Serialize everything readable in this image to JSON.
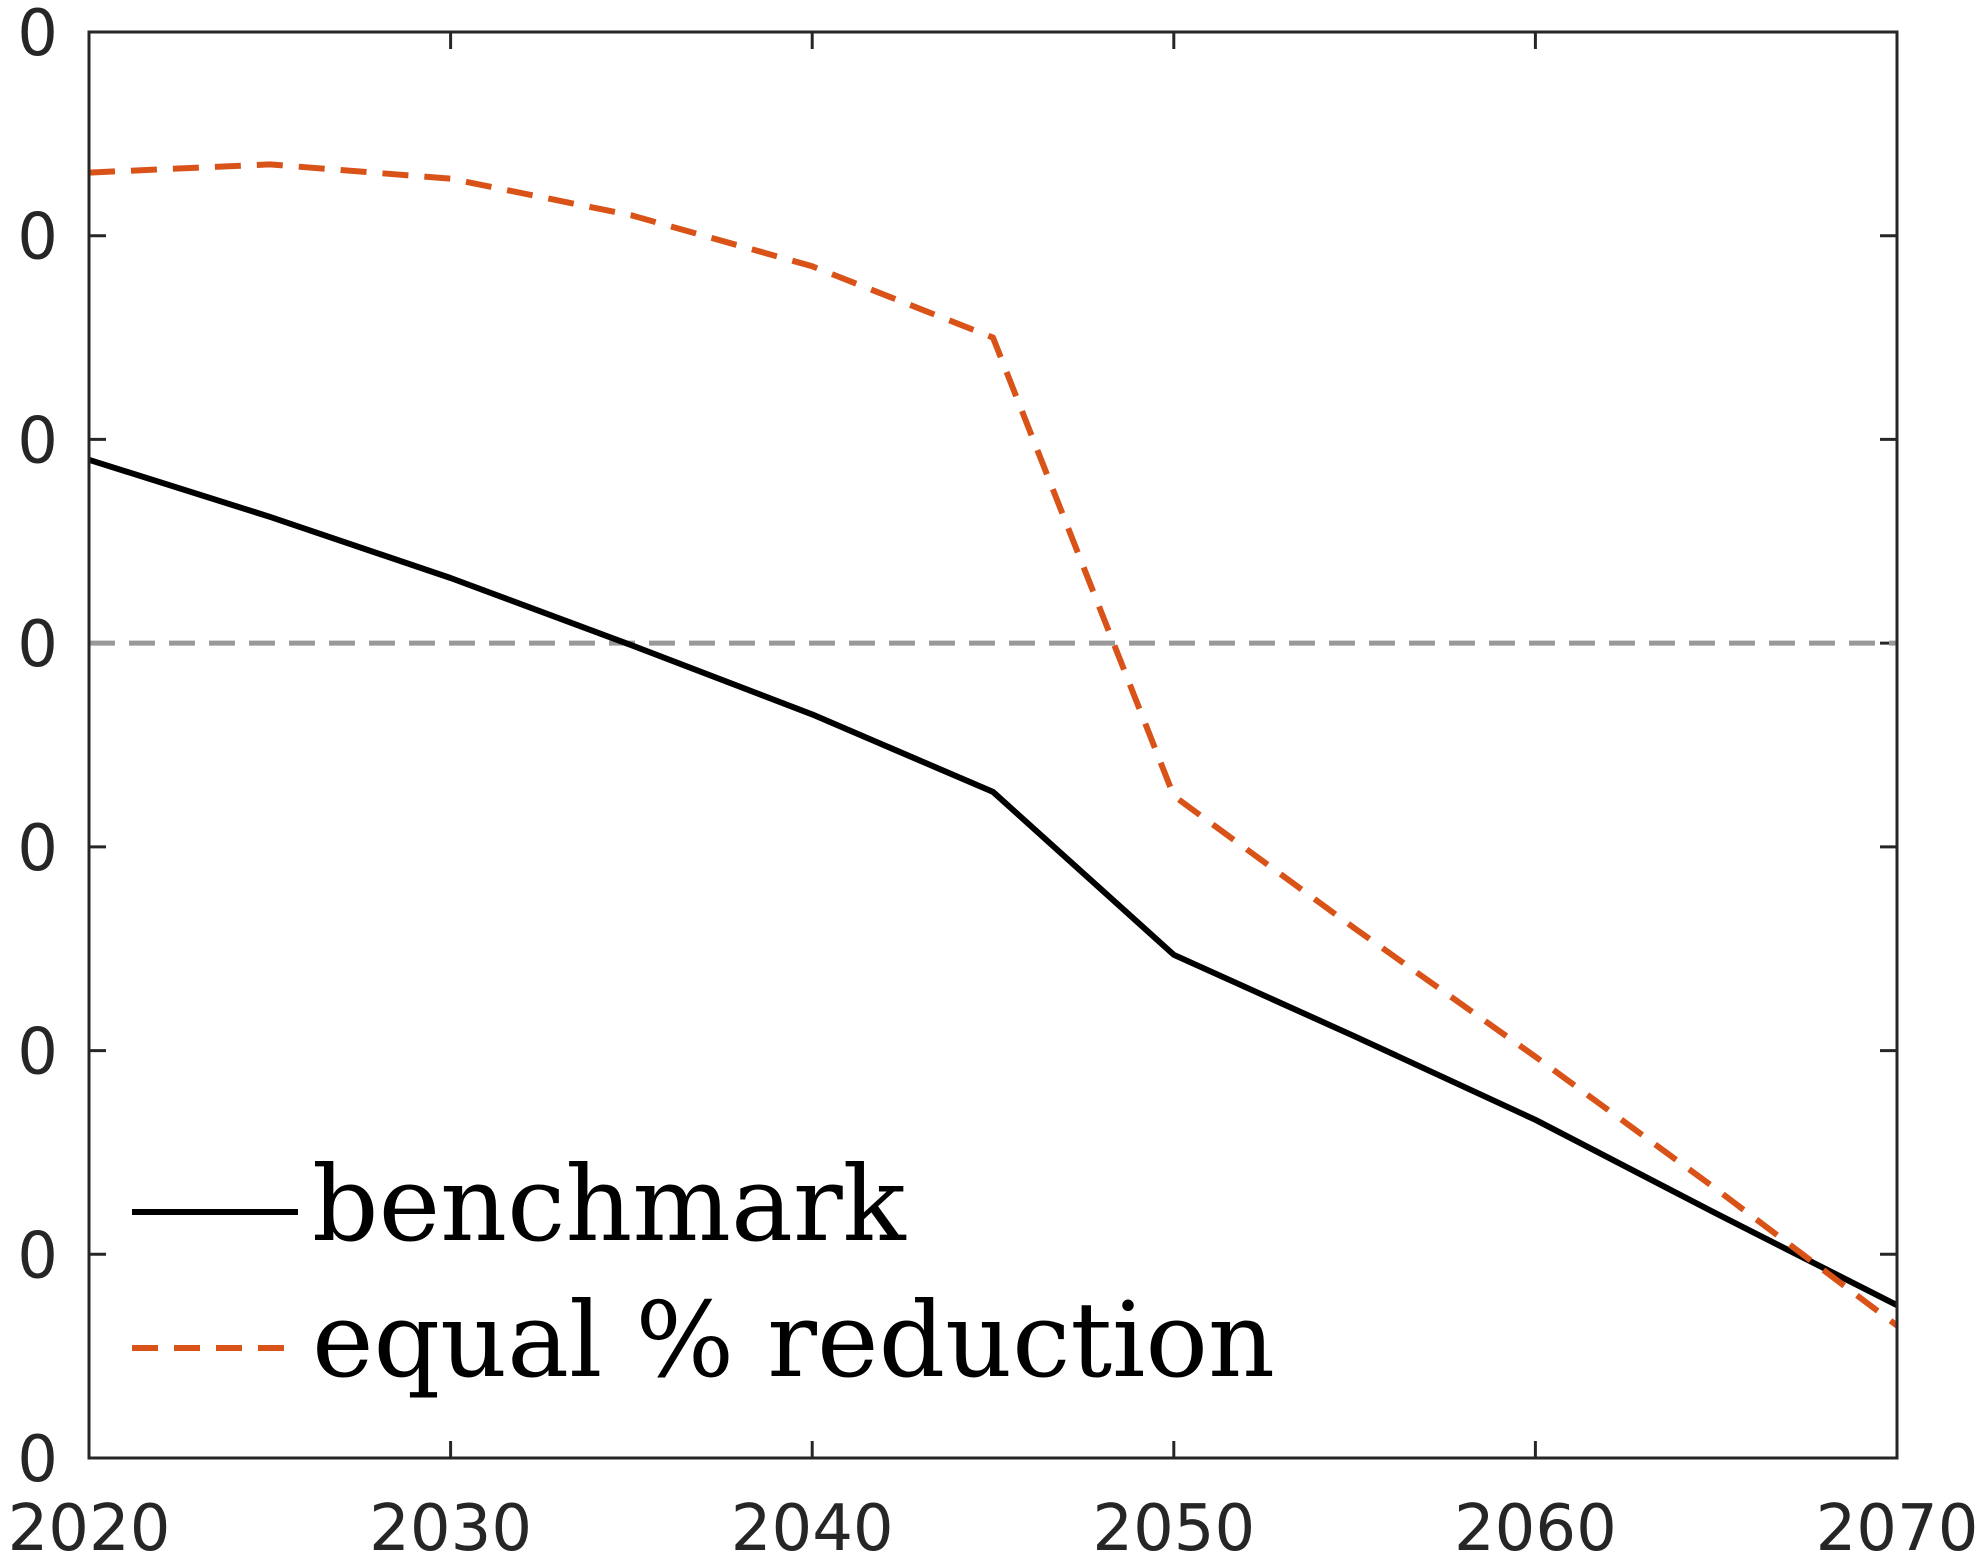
{
  "chart_data": {
    "type": "line",
    "x_ticks": [
      "2020",
      "2030",
      "2040",
      "2050",
      "2060",
      "2070"
    ],
    "y_tick_labels": [
      "0",
      "0",
      "0",
      "0",
      "0",
      "0",
      "0",
      "0"
    ],
    "xlim": [
      2020,
      2070
    ],
    "ylim": [
      0,
      7
    ],
    "x": [
      2020,
      2025,
      2030,
      2035,
      2040,
      2045,
      2050,
      2055,
      2060,
      2065,
      2070
    ],
    "reference_line": {
      "y": 4,
      "style": "dashed",
      "color": "#999999"
    },
    "series": [
      {
        "name": "benchmark",
        "style": "solid",
        "color": "#000000",
        "values": [
          4.9,
          4.62,
          4.32,
          3.99,
          3.65,
          3.27,
          2.47,
          2.07,
          1.66,
          1.2,
          0.75
        ]
      },
      {
        "name": "equal % reduction",
        "style": "dashed",
        "color": "#D95319",
        "values": [
          6.31,
          6.35,
          6.28,
          6.1,
          5.85,
          5.5,
          3.25,
          2.6,
          1.97,
          1.32,
          0.65
        ]
      }
    ],
    "legend": {
      "position": "bottom-left",
      "entries": [
        "benchmark",
        "equal % reduction"
      ]
    },
    "grid": false
  }
}
